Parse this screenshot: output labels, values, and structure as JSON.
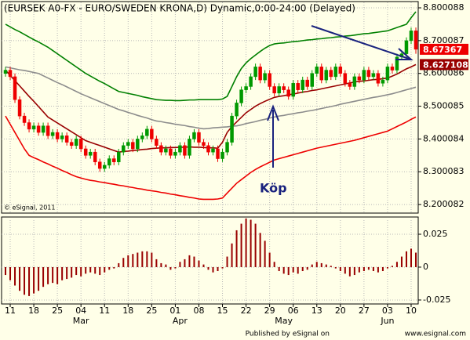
{
  "chart_data": [
    {
      "type": "candlestick",
      "title": "(EURSEK A0-FX - EURO/SWEDEN KRONA,D) Dynamic,0:00-24:00 (Delayed)",
      "copyright": "© eSignal, 2011",
      "annotation": "Köp",
      "categories": [
        null,
        "11",
        null,
        null,
        null,
        null,
        "18",
        null,
        null,
        null,
        null,
        "25",
        null,
        null,
        null,
        null,
        "04",
        null,
        null,
        null,
        null,
        "11",
        null,
        null,
        null,
        null,
        "18",
        null,
        null,
        null,
        null,
        "25",
        null,
        null,
        null,
        null,
        "01",
        null,
        null,
        null,
        null,
        "08",
        null,
        null,
        null,
        null,
        "15",
        null,
        null,
        null,
        null,
        "22",
        null,
        null,
        null,
        null,
        "29",
        null,
        null,
        null,
        null,
        "06",
        null,
        null,
        null,
        null,
        "13",
        null,
        null,
        null,
        null,
        "20",
        null,
        null,
        null,
        null,
        "27",
        null,
        null,
        null,
        null,
        "03",
        null,
        null,
        null,
        null,
        "10",
        null
      ],
      "months": [
        null,
        null,
        null,
        null,
        null,
        null,
        null,
        null,
        null,
        null,
        null,
        null,
        null,
        null,
        null,
        null,
        "Mar",
        null,
        null,
        null,
        null,
        null,
        null,
        null,
        null,
        null,
        null,
        null,
        null,
        null,
        null,
        null,
        null,
        null,
        null,
        null,
        null,
        "Apr",
        null,
        null,
        null,
        null,
        null,
        null,
        null,
        null,
        null,
        null,
        null,
        null,
        null,
        null,
        null,
        null,
        null,
        null,
        null,
        null,
        null,
        "May",
        null,
        null,
        null,
        null,
        null,
        null,
        null,
        null,
        null,
        null,
        null,
        null,
        null,
        null,
        null,
        null,
        null,
        null,
        null,
        null,
        null,
        "Jun",
        null,
        null,
        null,
        null,
        null,
        null
      ],
      "open": [
        8.6,
        8.61,
        8.59,
        8.52,
        8.47,
        8.45,
        8.43,
        8.44,
        8.42,
        8.44,
        8.41,
        8.42,
        8.4,
        8.41,
        8.39,
        8.38,
        8.4,
        8.37,
        8.35,
        8.36,
        8.33,
        8.31,
        8.32,
        8.34,
        8.33,
        8.36,
        8.38,
        8.39,
        8.37,
        8.4,
        8.41,
        8.43,
        8.4,
        8.38,
        8.36,
        8.37,
        8.35,
        8.36,
        8.38,
        8.35,
        8.4,
        8.42,
        8.39,
        8.38,
        8.36,
        8.37,
        8.34,
        8.36,
        8.39,
        8.47,
        8.51,
        8.55,
        8.56,
        8.59,
        8.62,
        8.58,
        8.6,
        8.56,
        8.54,
        8.56,
        8.55,
        8.53,
        8.57,
        8.55,
        8.58,
        8.56,
        8.6,
        8.62,
        8.58,
        8.61,
        8.59,
        8.62,
        8.6,
        8.57,
        8.56,
        8.59,
        8.58,
        8.61,
        8.59,
        8.6,
        8.57,
        8.58,
        8.62,
        8.61,
        8.65,
        8.66,
        8.7,
        8.73
      ],
      "high": [
        8.62,
        8.62,
        8.6,
        8.53,
        8.48,
        8.46,
        8.45,
        8.45,
        8.45,
        8.45,
        8.43,
        8.43,
        8.42,
        8.42,
        8.4,
        8.41,
        8.41,
        8.38,
        8.37,
        8.37,
        8.34,
        8.33,
        8.35,
        8.35,
        8.37,
        8.39,
        8.4,
        8.4,
        8.41,
        8.42,
        8.44,
        8.44,
        8.41,
        8.39,
        8.38,
        8.38,
        8.37,
        8.39,
        8.39,
        8.41,
        8.43,
        8.43,
        8.4,
        8.39,
        8.38,
        8.38,
        8.37,
        8.4,
        8.48,
        8.52,
        8.56,
        8.57,
        8.6,
        8.63,
        8.63,
        8.61,
        8.61,
        8.57,
        8.57,
        8.57,
        8.56,
        8.58,
        8.58,
        8.59,
        8.59,
        8.61,
        8.63,
        8.63,
        8.62,
        8.62,
        8.63,
        8.63,
        8.61,
        8.58,
        8.6,
        8.6,
        8.62,
        8.62,
        8.61,
        8.61,
        8.59,
        8.63,
        8.63,
        8.66,
        8.67,
        8.71,
        8.74,
        8.74
      ],
      "low": [
        8.59,
        8.58,
        8.51,
        8.46,
        8.44,
        8.42,
        8.42,
        8.41,
        8.41,
        8.4,
        8.4,
        8.39,
        8.39,
        8.38,
        8.37,
        8.37,
        8.36,
        8.34,
        8.34,
        8.32,
        8.3,
        8.3,
        8.31,
        8.32,
        8.32,
        8.35,
        8.37,
        8.36,
        8.36,
        8.39,
        8.4,
        8.39,
        8.37,
        8.35,
        8.35,
        8.34,
        8.34,
        8.35,
        8.34,
        8.34,
        8.39,
        8.38,
        8.37,
        8.35,
        8.35,
        8.33,
        8.33,
        8.35,
        8.38,
        8.46,
        8.5,
        8.54,
        8.55,
        8.58,
        8.57,
        8.57,
        8.55,
        8.53,
        8.53,
        8.54,
        8.52,
        8.52,
        8.54,
        8.54,
        8.55,
        8.55,
        8.59,
        8.57,
        8.57,
        8.58,
        8.58,
        8.59,
        8.56,
        8.55,
        8.55,
        8.57,
        8.57,
        8.58,
        8.58,
        8.56,
        8.56,
        8.57,
        8.6,
        8.6,
        8.64,
        8.65,
        8.69,
        8.66
      ],
      "close": [
        8.61,
        8.59,
        8.52,
        8.47,
        8.45,
        8.43,
        8.44,
        8.42,
        8.44,
        8.41,
        8.42,
        8.4,
        8.41,
        8.39,
        8.38,
        8.4,
        8.37,
        8.35,
        8.36,
        8.33,
        8.31,
        8.32,
        8.34,
        8.33,
        8.36,
        8.38,
        8.39,
        8.37,
        8.4,
        8.41,
        8.43,
        8.4,
        8.38,
        8.36,
        8.37,
        8.35,
        8.36,
        8.38,
        8.35,
        8.4,
        8.42,
        8.39,
        8.38,
        8.36,
        8.37,
        8.34,
        8.36,
        8.39,
        8.47,
        8.51,
        8.55,
        8.56,
        8.59,
        8.62,
        8.58,
        8.6,
        8.56,
        8.54,
        8.56,
        8.55,
        8.53,
        8.57,
        8.55,
        8.58,
        8.56,
        8.6,
        8.62,
        8.58,
        8.61,
        8.59,
        8.62,
        8.6,
        8.57,
        8.56,
        8.59,
        8.58,
        8.61,
        8.59,
        8.6,
        8.57,
        8.58,
        8.62,
        8.61,
        8.65,
        8.66,
        8.7,
        8.73,
        8.67367
      ],
      "up_color": "#009900",
      "down_color": "#ee0000",
      "close_box_color": "#ee0000",
      "series": [
        {
          "color": "#008000",
          "values": [
            8.75,
            8.742,
            8.734,
            8.727,
            8.719,
            8.711,
            8.703,
            8.696,
            8.688,
            8.68,
            8.67,
            8.66,
            8.65,
            8.64,
            8.63,
            8.62,
            8.61,
            8.6,
            8.592,
            8.584,
            8.576,
            8.569,
            8.561,
            8.553,
            8.545,
            8.542,
            8.539,
            8.536,
            8.533,
            8.529,
            8.526,
            8.523,
            8.52,
            8.519,
            8.518,
            8.518,
            8.517,
            8.517,
            8.518,
            8.519,
            8.519,
            8.52,
            8.52,
            8.52,
            8.52,
            8.52,
            8.522,
            8.53,
            8.56,
            8.59,
            8.615,
            8.632,
            8.645,
            8.656,
            8.667,
            8.677,
            8.685,
            8.69,
            8.692,
            8.693,
            8.695,
            8.697,
            8.698,
            8.7,
            8.702,
            8.703,
            8.705,
            8.706,
            8.708,
            8.709,
            8.711,
            8.712,
            8.714,
            8.715,
            8.717,
            8.719,
            8.721,
            8.722,
            8.724,
            8.726,
            8.728,
            8.73,
            8.735,
            8.74,
            8.745,
            8.75,
            8.77,
            8.788
          ]
        },
        {
          "color": "#8c8c8c",
          "values": [
            8.62,
            8.617,
            8.614,
            8.611,
            8.609,
            8.606,
            8.603,
            8.6,
            8.593,
            8.586,
            8.579,
            8.572,
            8.566,
            8.559,
            8.552,
            8.545,
            8.538,
            8.532,
            8.526,
            8.52,
            8.514,
            8.508,
            8.502,
            8.496,
            8.49,
            8.486,
            8.481,
            8.477,
            8.472,
            8.468,
            8.464,
            8.459,
            8.455,
            8.453,
            8.45,
            8.448,
            8.445,
            8.443,
            8.441,
            8.438,
            8.436,
            8.433,
            8.431,
            8.432,
            8.434,
            8.435,
            8.436,
            8.437,
            8.439,
            8.44,
            8.443,
            8.447,
            8.45,
            8.453,
            8.457,
            8.46,
            8.464,
            8.467,
            8.47,
            8.472,
            8.475,
            8.477,
            8.48,
            8.482,
            8.485,
            8.487,
            8.49,
            8.493,
            8.496,
            8.499,
            8.502,
            8.506,
            8.509,
            8.512,
            8.515,
            8.518,
            8.521,
            8.524,
            8.527,
            8.529,
            8.532,
            8.535,
            8.538,
            8.542,
            8.546,
            8.55,
            8.554,
            8.558
          ]
        },
        {
          "color": "#990000",
          "value_box": true,
          "values": [
            8.61,
            8.594,
            8.578,
            8.562,
            8.546,
            8.53,
            8.515,
            8.499,
            8.483,
            8.467,
            8.458,
            8.449,
            8.44,
            8.431,
            8.422,
            8.413,
            8.404,
            8.395,
            8.39,
            8.385,
            8.38,
            8.375,
            8.37,
            8.365,
            8.36,
            8.362,
            8.363,
            8.365,
            8.366,
            8.368,
            8.369,
            8.371,
            8.372,
            8.373,
            8.373,
            8.374,
            8.374,
            8.375,
            8.375,
            8.376,
            8.375,
            8.375,
            8.374,
            8.373,
            8.373,
            8.372,
            8.39,
            8.42,
            8.438,
            8.452,
            8.466,
            8.48,
            8.49,
            8.5,
            8.508,
            8.515,
            8.521,
            8.527,
            8.53,
            8.532,
            8.535,
            8.537,
            8.54,
            8.543,
            8.545,
            8.548,
            8.55,
            8.553,
            8.556,
            8.559,
            8.562,
            8.565,
            8.568,
            8.571,
            8.574,
            8.576,
            8.577,
            8.579,
            8.581,
            8.582,
            8.584,
            8.586,
            8.592,
            8.598,
            8.606,
            8.614,
            8.62,
            8.627108
          ]
        },
        {
          "color": "#ee0000",
          "values": [
            8.47,
            8.445,
            8.42,
            8.395,
            8.37,
            8.35,
            8.343,
            8.337,
            8.33,
            8.324,
            8.317,
            8.311,
            8.304,
            8.298,
            8.291,
            8.285,
            8.281,
            8.277,
            8.274,
            8.272,
            8.269,
            8.267,
            8.264,
            8.262,
            8.259,
            8.257,
            8.254,
            8.252,
            8.249,
            8.247,
            8.244,
            8.242,
            8.24,
            8.237,
            8.235,
            8.232,
            8.23,
            8.227,
            8.225,
            8.222,
            8.22,
            8.217,
            8.216,
            8.216,
            8.216,
            8.217,
            8.22,
            8.235,
            8.25,
            8.265,
            8.276,
            8.287,
            8.298,
            8.307,
            8.315,
            8.322,
            8.329,
            8.336,
            8.34,
            8.344,
            8.348,
            8.352,
            8.356,
            8.36,
            8.364,
            8.368,
            8.372,
            8.375,
            8.378,
            8.381,
            8.384,
            8.387,
            8.39,
            8.393,
            8.396,
            8.4,
            8.404,
            8.408,
            8.412,
            8.416,
            8.42,
            8.424,
            8.431,
            8.438,
            8.445,
            8.452,
            8.46,
            8.467
          ]
        }
      ],
      "ylim": [
        8.174,
        8.824
      ],
      "yticks": [
        8.800088,
        8.700087,
        8.600086,
        8.500085,
        8.400084,
        8.300083,
        8.200082
      ],
      "grid": true
    },
    {
      "type": "bar",
      "color": "#990000",
      "values": [
        -0.006,
        -0.01,
        -0.014,
        -0.018,
        -0.021,
        -0.022,
        -0.02,
        -0.018,
        -0.015,
        -0.013,
        -0.012,
        -0.013,
        -0.01,
        -0.009,
        -0.008,
        -0.006,
        -0.007,
        -0.005,
        -0.004,
        -0.005,
        -0.006,
        -0.004,
        -0.002,
        -0.001,
        0.003,
        0.007,
        0.009,
        0.01,
        0.011,
        0.012,
        0.012,
        0.011,
        0.006,
        0.003,
        0.002,
        -0.002,
        -0.001,
        0.004,
        0.006,
        0.009,
        0.008,
        0.005,
        0.002,
        -0.002,
        -0.004,
        -0.003,
        -0.001,
        0.008,
        0.018,
        0.028,
        0.033,
        0.037,
        0.036,
        0.033,
        0.026,
        0.02,
        0.011,
        0.004,
        -0.003,
        -0.005,
        -0.006,
        -0.004,
        -0.005,
        -0.003,
        -0.002,
        0.002,
        0.004,
        0.003,
        0.002,
        0.001,
        -0.001,
        -0.003,
        -0.005,
        -0.007,
        -0.006,
        -0.004,
        -0.003,
        -0.002,
        -0.003,
        -0.004,
        -0.003,
        -0.001,
        0.001,
        0.004,
        0.008,
        0.012,
        0.014,
        0.011
      ],
      "ylim": [
        -0.028,
        0.0375
      ],
      "yticks": [
        0.025,
        0,
        -0.025
      ],
      "grid": true
    }
  ],
  "footer": {
    "publisher": "Published by eSignal on",
    "site": "www.esignal.com"
  }
}
